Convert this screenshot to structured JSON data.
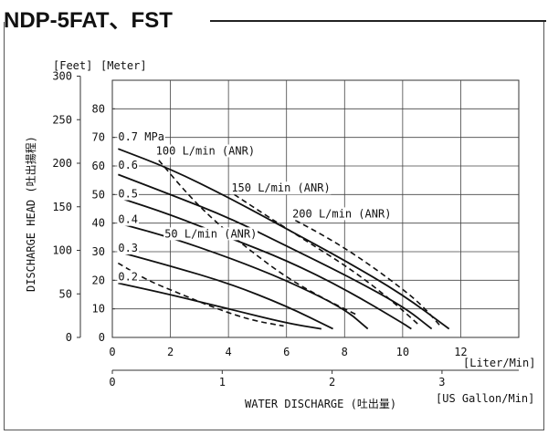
{
  "title": "NDP-5FAT、FST",
  "chart_data": {
    "type": "line",
    "title": "NDP-5FAT、FST",
    "ylabel": "DISCHARGE HEAD (吐出揚程)",
    "y_unit_feet": "[Feet]",
    "y_unit_meter": "[Meter]",
    "xlabel": "WATER DISCHARGE (吐出量)",
    "x_unit_liter": "[Liter/Min]",
    "x_unit_gallon": "[US Gallon/Min]",
    "meter_ticks": [
      "0",
      "10",
      "20",
      "30",
      "40",
      "50",
      "60",
      "70",
      "80"
    ],
    "feet_ticks": [
      "0",
      "50",
      "100",
      "150",
      "200",
      "250",
      "300"
    ],
    "liter_ticks": [
      "0",
      "2",
      "4",
      "6",
      "8",
      "10",
      "12"
    ],
    "gallon_ticks": [
      "0",
      "1",
      "2",
      "3"
    ],
    "xlim": [
      0,
      14
    ],
    "ylim": [
      0,
      90
    ],
    "grid": true,
    "series": [
      {
        "name": "0.7 MPa",
        "style": "solid",
        "x": [
          0.2,
          2,
          4,
          6,
          8,
          10,
          11.6
        ],
        "y": [
          66,
          59,
          49,
          38,
          27,
          15,
          3
        ]
      },
      {
        "name": "0.6",
        "style": "solid",
        "x": [
          0.2,
          2,
          4,
          6,
          8,
          10,
          11
        ],
        "y": [
          57,
          50,
          42,
          32,
          22,
          11,
          3
        ]
      },
      {
        "name": "0.5",
        "style": "solid",
        "x": [
          0.2,
          2,
          4,
          6,
          8,
          10,
          10.3
        ],
        "y": [
          49,
          43,
          35,
          27,
          17,
          5,
          3
        ]
      },
      {
        "name": "0.4",
        "style": "solid",
        "x": [
          0.2,
          2,
          4,
          6,
          8,
          8.8
        ],
        "y": [
          40,
          35,
          28,
          20,
          10,
          3
        ]
      },
      {
        "name": "0.3",
        "style": "solid",
        "x": [
          0.2,
          2,
          4,
          6,
          7.6
        ],
        "y": [
          30,
          25,
          19,
          11,
          3
        ]
      },
      {
        "name": "0.2",
        "style": "solid",
        "x": [
          0.2,
          2,
          4,
          6,
          7.2
        ],
        "y": [
          19,
          15,
          10,
          5,
          3
        ]
      },
      {
        "name": "50 L/min (ANR)",
        "style": "dashed",
        "x": [
          0.2,
          1.2,
          2.4,
          3.6,
          4.8,
          5.9
        ],
        "y": [
          26,
          20,
          15,
          10,
          6,
          4
        ]
      },
      {
        "name": "100 L/min (ANR)",
        "style": "dashed",
        "x": [
          1.6,
          2.6,
          3.6,
          4.8,
          6,
          7.2,
          8.4
        ],
        "y": [
          62,
          50,
          40,
          30,
          21,
          14,
          8
        ]
      },
      {
        "name": "150 L/min (ANR)",
        "style": "dashed",
        "x": [
          4.2,
          5.4,
          6.8,
          8.2,
          9.5,
          10.6
        ],
        "y": [
          50,
          42,
          33,
          24,
          14,
          4
        ]
      },
      {
        "name": "200 L/min (ANR)",
        "style": "dashed",
        "x": [
          6.3,
          7.4,
          8.5,
          9.6,
          10.6,
          11.3
        ],
        "y": [
          41,
          35,
          28,
          20,
          12,
          4
        ]
      }
    ],
    "curve_labels": [
      {
        "text": "0.7 MPa",
        "x": 0.2,
        "y": 69
      },
      {
        "text": "0.6",
        "x": 0.2,
        "y": 59
      },
      {
        "text": "0.5",
        "x": 0.2,
        "y": 49
      },
      {
        "text": "0.4",
        "x": 0.2,
        "y": 40
      },
      {
        "text": "0.3",
        "x": 0.2,
        "y": 30
      },
      {
        "text": "0.2",
        "x": 0.2,
        "y": 20
      },
      {
        "text": "100 L/min (ANR)",
        "x": 1.5,
        "y": 64
      },
      {
        "text": "150 L/min (ANR)",
        "x": 4.1,
        "y": 51
      },
      {
        "text": "200 L/min (ANR)",
        "x": 6.2,
        "y": 42
      },
      {
        "text": "50 L/min (ANR)",
        "x": 1.8,
        "y": 35
      }
    ]
  }
}
